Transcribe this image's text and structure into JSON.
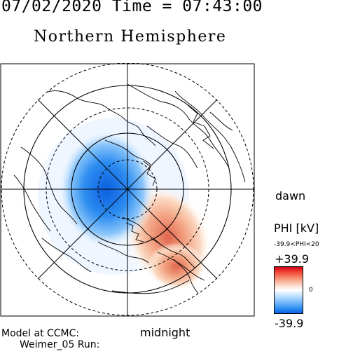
{
  "header": {
    "datetime": "07/02/2020 Time = 07:43:00"
  },
  "map": {
    "title": "Northern Hemisphere",
    "dawn_label": "dawn",
    "midnight_label": "midnight",
    "projection": "polar stereographic"
  },
  "colorbar": {
    "title": "PHI [kV]",
    "range_text": "-39.9<PHI<20",
    "max_label": "+39.9",
    "zero_label": "0",
    "min_label": "-39.9",
    "colors": {
      "positive": "#d4001a",
      "neutral": "#ffffff",
      "negative": "#0b5fe0"
    }
  },
  "footer": {
    "model_line": "Model at CCMC:",
    "run_line": "Weimer_05 Run:"
  }
}
